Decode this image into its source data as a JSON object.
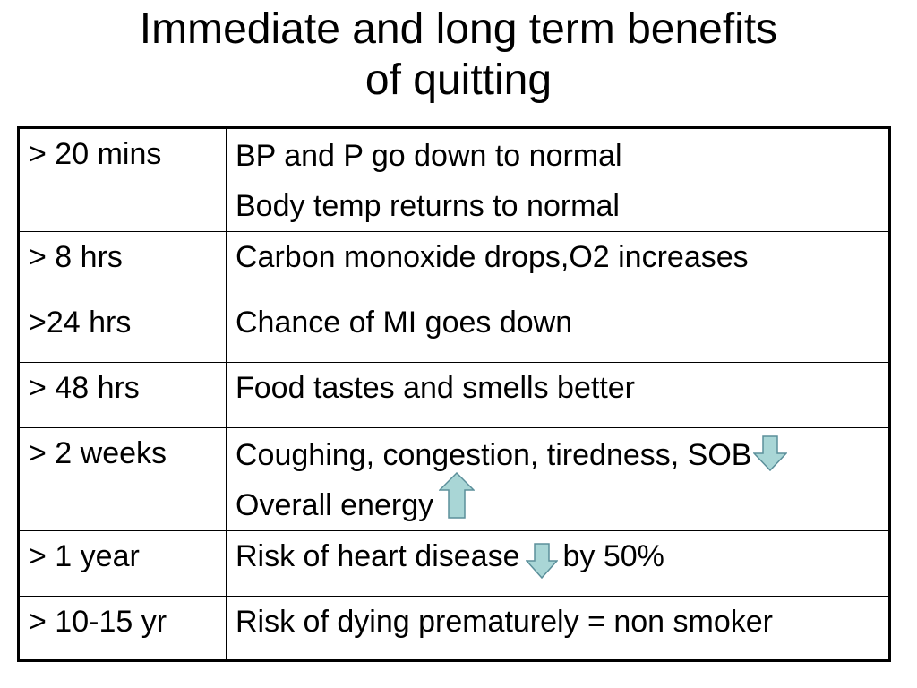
{
  "title": {
    "line1": "Immediate and long term benefits",
    "line2": "of quitting"
  },
  "table": {
    "rows": [
      {
        "time": "> 20 mins",
        "lines": [
          "BP and P go down to normal",
          "Body temp returns to normal"
        ]
      },
      {
        "time": "> 8 hrs",
        "lines": [
          "Carbon monoxide drops,O2 increases"
        ]
      },
      {
        "time": ">24 hrs",
        "lines": [
          "Chance of MI goes down"
        ]
      },
      {
        "time": "> 48 hrs",
        "lines": [
          "Food tastes and smells better"
        ]
      },
      {
        "time": "> 2 weeks",
        "lines": [
          "Coughing, congestion, tiredness, SOB",
          "Overall energy"
        ]
      },
      {
        "time": "> 1 year",
        "lines": [
          "Risk of heart disease",
          "by 50%"
        ]
      },
      {
        "time": "> 10-15 yr",
        "lines": [
          "Risk of dying prematurely =  non smoker"
        ]
      }
    ]
  },
  "icons": {
    "decrease": "arrow-down-icon",
    "increase": "arrow-up-icon",
    "arrow_fill": "#a9d6d6",
    "arrow_stroke": "#5b8f9a"
  }
}
